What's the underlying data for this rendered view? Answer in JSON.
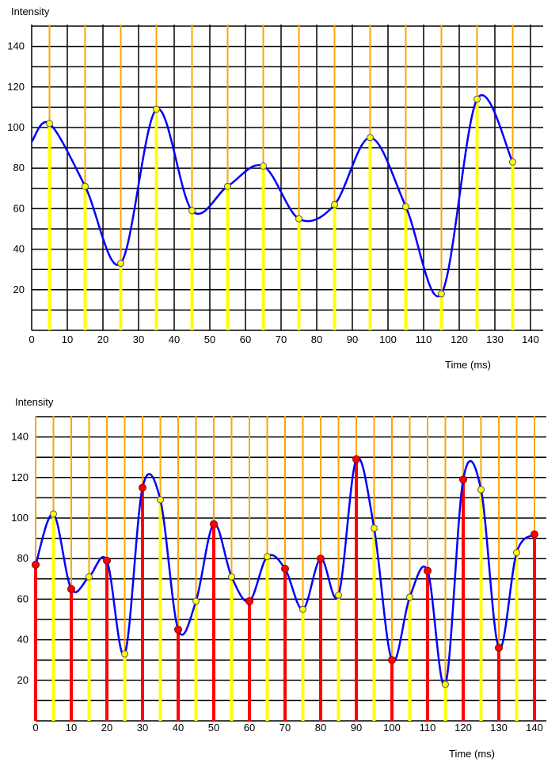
{
  "chart_data": [
    {
      "type": "line",
      "title": "",
      "ylabel": "Intensity",
      "xlabel": "Time (ms)",
      "xlim": [
        0,
        145
      ],
      "ylim": [
        0,
        150
      ],
      "x_ticks": [
        0,
        10,
        20,
        30,
        40,
        50,
        60,
        70,
        80,
        90,
        100,
        110,
        120,
        130,
        140
      ],
      "y_ticks": [
        20,
        40,
        60,
        80,
        100,
        120,
        140
      ],
      "grid": true,
      "grid_step": [
        5,
        10
      ],
      "colors": {
        "grid": "#000000",
        "sample_top": "#ffa500",
        "sample_bottom": "#ffff00",
        "curve": "#0000ff",
        "marker": "#ffff00"
      },
      "curve_start": [
        0,
        93
      ],
      "curve_end": [
        137,
        83
      ],
      "samples": {
        "x": [
          5,
          15,
          25,
          35,
          45,
          55,
          65,
          75,
          85,
          95,
          105,
          115,
          125,
          135
        ],
        "y": [
          102,
          71,
          33,
          109,
          59,
          71,
          81,
          55,
          62,
          95,
          61,
          18,
          114,
          83
        ]
      }
    },
    {
      "type": "line",
      "title": "",
      "ylabel": "Intensity",
      "xlabel": "Time (ms)",
      "xlim": [
        0,
        143
      ],
      "ylim": [
        0,
        150
      ],
      "x_ticks": [
        0,
        10,
        20,
        30,
        40,
        50,
        60,
        70,
        80,
        90,
        100,
        110,
        120,
        130,
        140
      ],
      "y_ticks": [
        20,
        40,
        60,
        80,
        100,
        120,
        140
      ],
      "grid": true,
      "grid_step": [
        5,
        10
      ],
      "colors": {
        "grid": "#000000",
        "sample_top": "#ffa500",
        "sample_bottom": "#ffff00",
        "curve": "#0000ff",
        "marker": "#ffff00",
        "resample": "#ff0000"
      },
      "samples": {
        "x": [
          5,
          15,
          25,
          35,
          45,
          55,
          65,
          75,
          85,
          95,
          105,
          115,
          125,
          135
        ],
        "y": [
          102,
          71,
          33,
          109,
          59,
          71,
          81,
          55,
          62,
          95,
          61,
          18,
          114,
          83
        ]
      },
      "resamples": {
        "x": [
          0,
          10,
          20,
          30,
          40,
          50,
          60,
          70,
          80,
          90,
          100,
          110,
          120,
          130,
          140
        ],
        "y": [
          77,
          65,
          79,
          115,
          45,
          97,
          59,
          75,
          80,
          129,
          30,
          74,
          119,
          36,
          92
        ]
      }
    }
  ]
}
